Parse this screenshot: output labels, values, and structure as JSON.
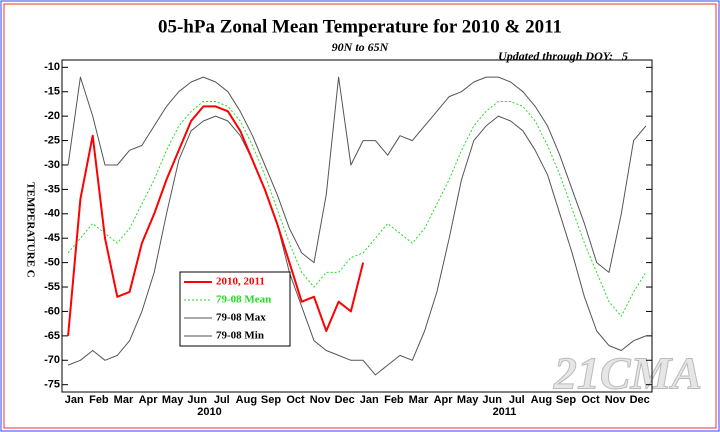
{
  "chart_data": {
    "type": "line",
    "title": "05-hPa Zonal Mean Temperature for 2010 & 2011",
    "subtitle": "90N to 65N",
    "annotation": "Updated through DOY:   5",
    "y_label": "TEMPERATURE C",
    "watermark": "21CMA",
    "year_labels": [
      "2010",
      "2011"
    ],
    "categories": [
      "Jan",
      null,
      "Feb",
      null,
      "Mar",
      null,
      "Apr",
      null,
      "May",
      null,
      "Jun",
      null,
      "Jul",
      null,
      "Aug",
      null,
      "Sep",
      null,
      "Oct",
      null,
      "Nov",
      null,
      "Dec",
      null,
      "Jan",
      null,
      "Feb",
      null,
      "Mar",
      null,
      "Apr",
      null,
      "May",
      null,
      "Jun",
      null,
      "Jul",
      null,
      "Aug",
      null,
      "Sep",
      null,
      "Oct",
      null,
      "Nov",
      null,
      "Dec",
      null
    ],
    "series": [
      {
        "name": "2010, 2011",
        "color": "#ff0000",
        "width": 2,
        "dash": false,
        "values": [
          -65,
          -37,
          -24,
          -45,
          -57,
          -56,
          -46,
          -40,
          -33,
          -27,
          -21,
          -18,
          -18,
          -19,
          -23,
          -29,
          -35,
          -42,
          -50,
          -58,
          -57,
          -64,
          -58,
          -60,
          -50,
          null,
          null,
          null,
          null,
          null,
          null,
          null,
          null,
          null,
          null,
          null,
          null,
          null,
          null,
          null,
          null,
          null,
          null,
          null,
          null,
          null,
          null,
          null
        ]
      },
      {
        "name": "79-08 Mean",
        "color": "#22dd22",
        "width": 1,
        "dash": true,
        "values": [
          -48,
          -45,
          -42,
          -44,
          -46,
          -43,
          -38,
          -33,
          -27,
          -22,
          -19,
          -17,
          -17,
          -18,
          -21,
          -26,
          -32,
          -39,
          -46,
          -52,
          -55,
          -52,
          -52,
          -49,
          -48,
          -45,
          -42,
          -44,
          -46,
          -43,
          -38,
          -33,
          -27,
          -22,
          -19,
          -17,
          -17,
          -18,
          -21,
          -26,
          -32,
          -39,
          -46,
          -52,
          -58,
          -61,
          -56,
          -52
        ]
      },
      {
        "name": "79-08 Max",
        "color": "#555555",
        "width": 1,
        "dash": false,
        "values": [
          -30,
          -12,
          -20,
          -30,
          -30,
          -27,
          -26,
          -22,
          -18,
          -15,
          -13,
          -12,
          -13,
          -15,
          -19,
          -24,
          -30,
          -36,
          -43,
          -48,
          -50,
          -36,
          -12,
          -30,
          -25,
          -25,
          -28,
          -24,
          -25,
          -22,
          -19,
          -16,
          -15,
          -13,
          -12,
          -12,
          -13,
          -15,
          -18,
          -22,
          -28,
          -35,
          -42,
          -50,
          -52,
          -40,
          -25,
          -22
        ]
      },
      {
        "name": "79-08 Min",
        "color": "#555555",
        "width": 1,
        "dash": false,
        "values": [
          -71,
          -70,
          -68,
          -70,
          -69,
          -66,
          -60,
          -52,
          -40,
          -29,
          -23,
          -21,
          -20,
          -21,
          -24,
          -29,
          -35,
          -42,
          -52,
          -59,
          -66,
          -68,
          -69,
          -70,
          -70,
          -73,
          -71,
          -69,
          -70,
          -64,
          -56,
          -45,
          -33,
          -25,
          -22,
          -20,
          -21,
          -23,
          -27,
          -32,
          -40,
          -48,
          -57,
          -64,
          -67,
          -68,
          -66,
          -65
        ]
      }
    ],
    "ylim": [
      -76.5,
      -8.5
    ],
    "yticks": [
      -10,
      -15,
      -20,
      -25,
      -30,
      -35,
      -40,
      -45,
      -50,
      -55,
      -60,
      -65,
      -70,
      -75
    ],
    "grid": false
  }
}
